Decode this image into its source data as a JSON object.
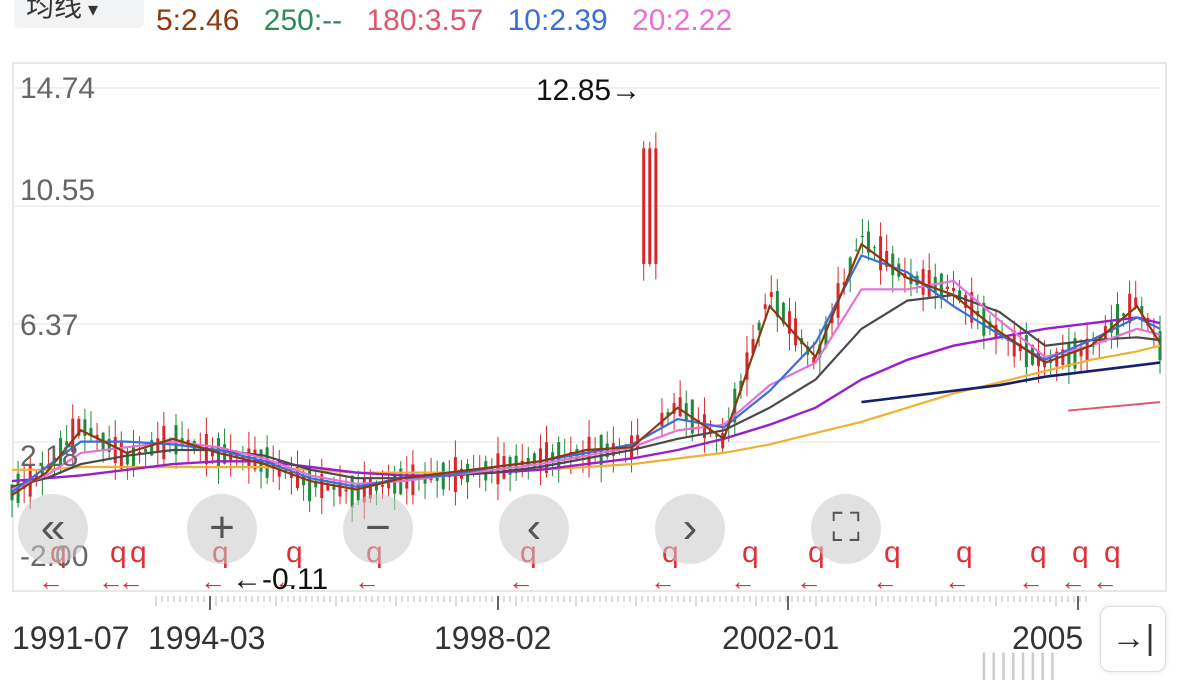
{
  "toolbar": {
    "ma_select_label": "均线"
  },
  "legend": [
    {
      "text": "5:2.46",
      "color": "#8b3a0e"
    },
    {
      "text": "250:--",
      "color": "#2e8b57"
    },
    {
      "text": "180:3.57",
      "color": "#e0566e"
    },
    {
      "text": "10:2.39",
      "color": "#3a6fd8"
    },
    {
      "text": "20:2.22",
      "color": "#e870d8"
    }
  ],
  "annotations": {
    "max_label": "12.85→",
    "min_label": "←-0.11"
  },
  "controls": {
    "rewind": "«",
    "zoom_in": "+",
    "zoom_out": "−",
    "prev": "‹",
    "next": "›",
    "fullscreen": "⛶",
    "last": "→|"
  },
  "watermark": "||||||||",
  "marker": {
    "q": "q",
    "arrow": "←"
  },
  "chart_data": {
    "type": "candlestick",
    "y_ticks": [
      "14.74",
      "10.55",
      "6.37",
      "2.18",
      "-2.00"
    ],
    "ylim": [
      -2.0,
      14.74
    ],
    "x_ticks": [
      "1991-07",
      "1994-03",
      "1998-02",
      "2002-01",
      "2005"
    ],
    "grid": true,
    "max_value": 12.85,
    "min_value": -0.11,
    "price_x": [
      0,
      3,
      6,
      10,
      14,
      18,
      22,
      26,
      30,
      34,
      38,
      42,
      46,
      50,
      54,
      58,
      62,
      66,
      70,
      74,
      78,
      82,
      86,
      90,
      94,
      98,
      100
    ],
    "price_close": [
      0.4,
      1.2,
      2.8,
      1.6,
      2.3,
      1.8,
      1.5,
      0.7,
      0.4,
      0.8,
      1.0,
      1.2,
      1.6,
      1.8,
      2.0,
      3.5,
      2.2,
      7.5,
      5.0,
      9.5,
      8.0,
      7.6,
      6.0,
      5.0,
      5.5,
      7.2,
      5.6
    ],
    "ma5": [
      0.3,
      1.1,
      2.6,
      1.8,
      2.3,
      1.8,
      1.4,
      0.8,
      0.5,
      0.9,
      1.1,
      1.3,
      1.5,
      1.9,
      2.0,
      3.4,
      2.3,
      7.0,
      5.2,
      9.2,
      8.0,
      7.4,
      6.1,
      5.0,
      5.6,
      7.0,
      5.7
    ],
    "ma10": [
      0.4,
      1.3,
      2.2,
      2.2,
      2.1,
      1.9,
      1.5,
      0.9,
      0.6,
      0.9,
      1.0,
      1.3,
      1.5,
      1.8,
      2.1,
      3.0,
      2.7,
      4.0,
      5.7,
      8.8,
      8.2,
      7.0,
      6.0,
      5.1,
      5.8,
      6.6,
      6.2
    ],
    "ma20": [
      0.5,
      1.0,
      1.8,
      2.0,
      2.2,
      2.0,
      1.6,
      1.0,
      0.7,
      0.8,
      1.0,
      1.2,
      1.4,
      1.7,
      2.0,
      2.6,
      2.8,
      4.2,
      5.0,
      7.6,
      7.6,
      7.9,
      6.5,
      5.2,
      5.6,
      6.2,
      6.0
    ],
    "ma_gray": [
      0.6,
      0.9,
      1.4,
      1.7,
      1.9,
      1.9,
      1.7,
      1.2,
      0.9,
      0.9,
      1.0,
      1.1,
      1.3,
      1.6,
      1.9,
      2.3,
      2.6,
      3.4,
      4.4,
      6.2,
      7.2,
      7.4,
      6.8,
      5.6,
      5.8,
      5.9,
      5.8
    ],
    "ma_purple": [
      0.8,
      0.9,
      1.0,
      1.2,
      1.4,
      1.5,
      1.5,
      1.3,
      1.1,
      1.0,
      1.0,
      1.1,
      1.2,
      1.4,
      1.6,
      1.9,
      2.3,
      2.8,
      3.4,
      4.4,
      5.1,
      5.6,
      5.9,
      6.2,
      6.4,
      6.6,
      6.4
    ],
    "ma_orange": [
      1.2,
      1.2,
      1.3,
      1.3,
      1.3,
      1.3,
      1.3,
      1.2,
      1.1,
      1.1,
      1.1,
      1.1,
      1.2,
      1.3,
      1.4,
      1.6,
      1.8,
      2.1,
      2.5,
      2.9,
      3.4,
      3.9,
      4.3,
      4.7,
      5.1,
      5.4,
      5.6
    ],
    "ma_navy": [
      null,
      null,
      null,
      null,
      null,
      null,
      null,
      null,
      null,
      null,
      null,
      null,
      null,
      null,
      null,
      null,
      null,
      null,
      null,
      3.6,
      3.8,
      4.0,
      4.2,
      4.5,
      4.7,
      4.9,
      5.0
    ],
    "series": [
      {
        "name": "5",
        "color": "#8b3a0e"
      },
      {
        "name": "10",
        "color": "#3a6fd8"
      },
      {
        "name": "20",
        "color": "#e870d8"
      },
      {
        "name": "180",
        "color": "#e0566e"
      },
      {
        "name": "250",
        "color": "#2e8b57"
      }
    ]
  }
}
